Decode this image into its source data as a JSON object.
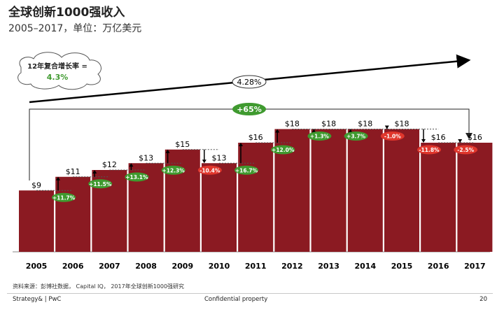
{
  "header": {
    "title": "全球创新1000强收入",
    "subtitle": "2005–2017，单位：万亿美元"
  },
  "annotation": {
    "cagr_label": "12年复合增长率 =",
    "cagr_value": "4.3%",
    "trend_value": "4.28%",
    "total_growth": "+65%"
  },
  "chart_data": {
    "type": "bar",
    "title": "全球创新1000强收入",
    "subtitle": "2005–2017，单位：万亿美元",
    "xlabel": "",
    "ylabel": "",
    "ylim": [
      0,
      20
    ],
    "grid": false,
    "categories": [
      "2005",
      "2006",
      "2007",
      "2008",
      "2009",
      "2010",
      "2011",
      "2012",
      "2013",
      "2014",
      "2015",
      "2016",
      "2017"
    ],
    "values": [
      9,
      11,
      12,
      13,
      15,
      13,
      16,
      18,
      18,
      18,
      18,
      16,
      16
    ],
    "value_labels": [
      "$9",
      "$11",
      "$12",
      "$13",
      "$15",
      "$13",
      "$16",
      "$18",
      "$18",
      "$18",
      "$18",
      "$16",
      "$16"
    ],
    "changes": [
      "+11.7%",
      "+11.5%",
      "+13.1%",
      "+12.3%",
      "-10.4%",
      "+16.7%",
      "+12.0%",
      "+1.3%",
      "+3.7%",
      "-1.0%",
      "-11.8%",
      "-2.5%"
    ],
    "change_colors": {
      "positive": "#3f9a2f",
      "negative": "#e0362c"
    },
    "bar_color": "#8b1a22"
  },
  "footer": {
    "source": "资料来源：彭博社数据， Capital IQ， 2017年全球创新1000强研究",
    "brand": "Strategy& | PwC",
    "confidential": "Confidential property",
    "page": "20"
  }
}
